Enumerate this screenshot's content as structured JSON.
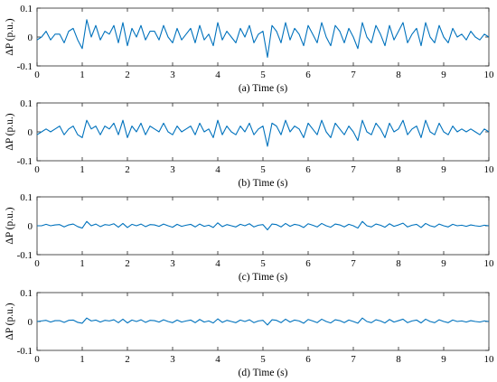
{
  "figure": {
    "colors": {
      "series": "#0072BD",
      "axis": "#262626"
    }
  },
  "chart_data": [
    {
      "id": "a",
      "type": "line",
      "xlabel": "(a) Time (s)",
      "ylabel": "ΔP (p.u.)",
      "xlim": [
        0,
        10
      ],
      "ylim": [
        -0.1,
        0.1
      ],
      "xticks": [
        0,
        1,
        2,
        3,
        4,
        5,
        6,
        7,
        8,
        9,
        10
      ],
      "yticks": [
        -0.1,
        0,
        0.1
      ],
      "xtick_labels": [
        "0",
        "1",
        "2",
        "3",
        "4",
        "5",
        "6",
        "7",
        "8",
        "9",
        "10"
      ],
      "ytick_labels": [
        "-0.1",
        "0",
        "0.1"
      ],
      "series": [
        {
          "x": [
            0,
            0.1,
            0.2,
            0.3,
            0.4,
            0.5,
            0.6,
            0.7,
            0.8,
            0.9,
            1.0,
            1.1,
            1.2,
            1.3,
            1.4,
            1.5,
            1.6,
            1.7,
            1.8,
            1.9,
            2.0,
            2.1,
            2.2,
            2.3,
            2.4,
            2.5,
            2.6,
            2.7,
            2.8,
            2.9,
            3.0,
            3.1,
            3.2,
            3.3,
            3.4,
            3.5,
            3.6,
            3.7,
            3.8,
            3.9,
            4.0,
            4.1,
            4.2,
            4.3,
            4.4,
            4.5,
            4.6,
            4.7,
            4.8,
            4.9,
            5.0,
            5.1,
            5.2,
            5.3,
            5.4,
            5.5,
            5.6,
            5.7,
            5.8,
            5.9,
            6.0,
            6.1,
            6.2,
            6.3,
            6.4,
            6.5,
            6.6,
            6.7,
            6.8,
            6.9,
            7.0,
            7.1,
            7.2,
            7.3,
            7.4,
            7.5,
            7.6,
            7.7,
            7.8,
            7.9,
            8.0,
            8.1,
            8.2,
            8.3,
            8.4,
            8.5,
            8.6,
            8.7,
            8.8,
            8.9,
            9.0,
            9.1,
            9.2,
            9.3,
            9.4,
            9.5,
            9.6,
            9.7,
            9.8,
            9.9,
            10.0
          ],
          "y": [
            -0.01,
            0.0,
            0.02,
            -0.01,
            0.01,
            0.01,
            -0.02,
            0.02,
            0.03,
            -0.01,
            -0.04,
            0.06,
            0.0,
            0.04,
            -0.01,
            0.02,
            0.01,
            0.04,
            -0.02,
            0.05,
            -0.03,
            0.03,
            0.0,
            0.04,
            -0.01,
            0.02,
            0.02,
            -0.01,
            0.04,
            0.0,
            -0.02,
            0.03,
            -0.01,
            0.01,
            0.03,
            -0.02,
            0.04,
            -0.01,
            0.01,
            -0.03,
            0.05,
            -0.01,
            0.02,
            0.0,
            -0.02,
            0.03,
            0.0,
            0.04,
            -0.02,
            0.01,
            0.02,
            -0.07,
            0.04,
            0.02,
            -0.02,
            0.05,
            -0.01,
            0.03,
            0.01,
            -0.03,
            0.04,
            0.01,
            -0.02,
            0.05,
            0.0,
            -0.03,
            0.04,
            0.02,
            -0.02,
            0.03,
            0.0,
            -0.04,
            0.05,
            0.0,
            -0.02,
            0.04,
            0.01,
            -0.03,
            0.04,
            -0.01,
            0.02,
            0.05,
            -0.02,
            0.01,
            0.03,
            -0.03,
            0.05,
            0.0,
            -0.02,
            0.04,
            0.0,
            -0.02,
            0.03,
            0.0,
            0.01,
            -0.01,
            0.02,
            0.0,
            -0.01,
            0.01,
            0.0
          ]
        }
      ]
    },
    {
      "id": "b",
      "type": "line",
      "xlabel": "(b) Time (s)",
      "ylabel": "ΔP (p.u.)",
      "xlim": [
        0,
        10
      ],
      "ylim": [
        -0.1,
        0.1
      ],
      "xticks": [
        0,
        1,
        2,
        3,
        4,
        5,
        6,
        7,
        8,
        9,
        10
      ],
      "yticks": [
        -0.1,
        0,
        0.1
      ],
      "xtick_labels": [
        "0",
        "1",
        "2",
        "3",
        "4",
        "5",
        "6",
        "7",
        "8",
        "9",
        "10"
      ],
      "ytick_labels": [
        "-0.1",
        "0",
        "0.1"
      ],
      "series": [
        {
          "x": [
            0,
            0.1,
            0.2,
            0.3,
            0.4,
            0.5,
            0.6,
            0.7,
            0.8,
            0.9,
            1.0,
            1.1,
            1.2,
            1.3,
            1.4,
            1.5,
            1.6,
            1.7,
            1.8,
            1.9,
            2.0,
            2.1,
            2.2,
            2.3,
            2.4,
            2.5,
            2.6,
            2.7,
            2.8,
            2.9,
            3.0,
            3.1,
            3.2,
            3.3,
            3.4,
            3.5,
            3.6,
            3.7,
            3.8,
            3.9,
            4.0,
            4.1,
            4.2,
            4.3,
            4.4,
            4.5,
            4.6,
            4.7,
            4.8,
            4.9,
            5.0,
            5.1,
            5.2,
            5.3,
            5.4,
            5.5,
            5.6,
            5.7,
            5.8,
            5.9,
            6.0,
            6.1,
            6.2,
            6.3,
            6.4,
            6.5,
            6.6,
            6.7,
            6.8,
            6.9,
            7.0,
            7.1,
            7.2,
            7.3,
            7.4,
            7.5,
            7.6,
            7.7,
            7.8,
            7.9,
            8.0,
            8.1,
            8.2,
            8.3,
            8.4,
            8.5,
            8.6,
            8.7,
            8.8,
            8.9,
            9.0,
            9.1,
            9.2,
            9.3,
            9.4,
            9.5,
            9.6,
            9.7,
            9.8,
            9.9,
            10.0
          ],
          "y": [
            -0.01,
            0.0,
            0.01,
            0.0,
            0.01,
            0.02,
            -0.01,
            0.01,
            0.02,
            -0.01,
            -0.02,
            0.04,
            0.01,
            0.02,
            -0.01,
            0.02,
            0.01,
            0.03,
            -0.01,
            0.04,
            -0.02,
            0.02,
            0.0,
            0.03,
            -0.01,
            0.02,
            0.01,
            0.0,
            0.03,
            0.0,
            -0.01,
            0.02,
            0.0,
            0.01,
            0.02,
            -0.01,
            0.03,
            0.0,
            0.01,
            -0.02,
            0.04,
            -0.01,
            0.02,
            0.0,
            -0.01,
            0.02,
            0.0,
            0.03,
            -0.01,
            0.01,
            0.02,
            -0.05,
            0.03,
            0.02,
            -0.01,
            0.04,
            0.0,
            0.02,
            0.01,
            -0.02,
            0.03,
            0.01,
            -0.01,
            0.04,
            0.0,
            -0.02,
            0.03,
            0.01,
            -0.01,
            0.02,
            0.0,
            -0.03,
            0.04,
            0.0,
            -0.01,
            0.03,
            0.01,
            -0.02,
            0.03,
            0.0,
            0.01,
            0.04,
            -0.01,
            0.01,
            0.02,
            -0.02,
            0.04,
            0.0,
            -0.01,
            0.03,
            0.0,
            -0.01,
            0.02,
            0.0,
            0.01,
            0.0,
            0.01,
            0.0,
            -0.01,
            0.01,
            0.0
          ]
        }
      ]
    },
    {
      "id": "c",
      "type": "line",
      "xlabel": "(c) Time (s)",
      "ylabel": "ΔP (p.u.)",
      "xlim": [
        0,
        10
      ],
      "ylim": [
        -0.1,
        0.1
      ],
      "xticks": [
        0,
        1,
        2,
        3,
        4,
        5,
        6,
        7,
        8,
        9,
        10
      ],
      "yticks": [
        -0.1,
        0,
        0.1
      ],
      "xtick_labels": [
        "0",
        "1",
        "2",
        "3",
        "4",
        "5",
        "6",
        "7",
        "8",
        "9",
        "10"
      ],
      "ytick_labels": [
        "-0.1",
        "0",
        "0.1"
      ],
      "series": [
        {
          "x": [
            0,
            0.1,
            0.2,
            0.3,
            0.4,
            0.5,
            0.6,
            0.7,
            0.8,
            0.9,
            1.0,
            1.1,
            1.2,
            1.3,
            1.4,
            1.5,
            1.6,
            1.7,
            1.8,
            1.9,
            2.0,
            2.1,
            2.2,
            2.3,
            2.4,
            2.5,
            2.6,
            2.7,
            2.8,
            2.9,
            3.0,
            3.1,
            3.2,
            3.3,
            3.4,
            3.5,
            3.6,
            3.7,
            3.8,
            3.9,
            4.0,
            4.1,
            4.2,
            4.3,
            4.4,
            4.5,
            4.6,
            4.7,
            4.8,
            4.9,
            5.0,
            5.1,
            5.2,
            5.3,
            5.4,
            5.5,
            5.6,
            5.7,
            5.8,
            5.9,
            6.0,
            6.1,
            6.2,
            6.3,
            6.4,
            6.5,
            6.6,
            6.7,
            6.8,
            6.9,
            7.0,
            7.1,
            7.2,
            7.3,
            7.4,
            7.5,
            7.6,
            7.7,
            7.8,
            7.9,
            8.0,
            8.1,
            8.2,
            8.3,
            8.4,
            8.5,
            8.6,
            8.7,
            8.8,
            8.9,
            9.0,
            9.1,
            9.2,
            9.3,
            9.4,
            9.5,
            9.6,
            9.7,
            9.8,
            9.9,
            10.0
          ],
          "y": [
            0.0,
            0.0,
            0.005,
            0.0,
            0.003,
            0.004,
            -0.004,
            0.003,
            0.006,
            -0.003,
            -0.008,
            0.015,
            0.0,
            0.006,
            -0.003,
            0.004,
            0.002,
            0.007,
            -0.005,
            0.008,
            -0.006,
            0.005,
            0.0,
            0.006,
            -0.003,
            0.004,
            0.003,
            -0.002,
            0.006,
            0.0,
            -0.005,
            0.005,
            -0.002,
            0.002,
            0.005,
            -0.004,
            0.006,
            -0.002,
            0.002,
            -0.006,
            0.01,
            -0.003,
            0.004,
            0.0,
            -0.004,
            0.005,
            0.0,
            0.007,
            -0.004,
            0.002,
            0.004,
            -0.014,
            0.006,
            0.004,
            -0.004,
            0.008,
            -0.002,
            0.005,
            0.002,
            -0.006,
            0.007,
            0.002,
            -0.004,
            0.008,
            0.0,
            -0.005,
            0.006,
            0.003,
            -0.004,
            0.005,
            0.0,
            -0.008,
            0.015,
            0.0,
            -0.004,
            0.006,
            0.002,
            -0.005,
            0.007,
            -0.002,
            0.003,
            0.009,
            -0.004,
            0.002,
            0.005,
            -0.006,
            0.008,
            0.0,
            -0.004,
            0.006,
            0.0,
            -0.004,
            0.005,
            0.0,
            0.002,
            -0.002,
            0.003,
            0.0,
            -0.002,
            0.002,
            0.0
          ]
        }
      ]
    },
    {
      "id": "d",
      "type": "line",
      "xlabel": "(d) Time (s)",
      "ylabel": "ΔP (p.u.)",
      "xlim": [
        0,
        10
      ],
      "ylim": [
        -0.1,
        0.1
      ],
      "xticks": [
        0,
        1,
        2,
        3,
        4,
        5,
        6,
        7,
        8,
        9,
        10
      ],
      "yticks": [
        -0.1,
        0,
        0.1
      ],
      "xtick_labels": [
        "0",
        "1",
        "2",
        "3",
        "4",
        "5",
        "6",
        "7",
        "8",
        "9",
        "10"
      ],
      "ytick_labels": [
        "-0.1",
        "0",
        "0.1"
      ],
      "series": [
        {
          "x": [
            0,
            0.1,
            0.2,
            0.3,
            0.4,
            0.5,
            0.6,
            0.7,
            0.8,
            0.9,
            1.0,
            1.1,
            1.2,
            1.3,
            1.4,
            1.5,
            1.6,
            1.7,
            1.8,
            1.9,
            2.0,
            2.1,
            2.2,
            2.3,
            2.4,
            2.5,
            2.6,
            2.7,
            2.8,
            2.9,
            3.0,
            3.1,
            3.2,
            3.3,
            3.4,
            3.5,
            3.6,
            3.7,
            3.8,
            3.9,
            4.0,
            4.1,
            4.2,
            4.3,
            4.4,
            4.5,
            4.6,
            4.7,
            4.8,
            4.9,
            5.0,
            5.1,
            5.2,
            5.3,
            5.4,
            5.5,
            5.6,
            5.7,
            5.8,
            5.9,
            6.0,
            6.1,
            6.2,
            6.3,
            6.4,
            6.5,
            6.6,
            6.7,
            6.8,
            6.9,
            7.0,
            7.1,
            7.2,
            7.3,
            7.4,
            7.5,
            7.6,
            7.7,
            7.8,
            7.9,
            8.0,
            8.1,
            8.2,
            8.3,
            8.4,
            8.5,
            8.6,
            8.7,
            8.8,
            8.9,
            9.0,
            9.1,
            9.2,
            9.3,
            9.4,
            9.5,
            9.6,
            9.7,
            9.8,
            9.9,
            10.0
          ],
          "y": [
            0.0,
            0.002,
            0.004,
            -0.002,
            0.003,
            0.003,
            -0.003,
            0.004,
            0.005,
            -0.003,
            -0.006,
            0.012,
            0.002,
            0.005,
            -0.002,
            0.004,
            0.002,
            0.006,
            -0.004,
            0.008,
            -0.005,
            0.005,
            0.0,
            0.006,
            -0.003,
            0.004,
            0.003,
            -0.002,
            0.006,
            0.0,
            -0.004,
            0.005,
            -0.002,
            0.002,
            0.005,
            -0.004,
            0.007,
            -0.002,
            0.002,
            -0.005,
            0.009,
            -0.003,
            0.004,
            0.0,
            -0.004,
            0.005,
            0.0,
            0.006,
            -0.004,
            0.002,
            0.004,
            -0.012,
            0.006,
            0.004,
            -0.004,
            0.008,
            -0.002,
            0.005,
            0.002,
            -0.006,
            0.007,
            0.002,
            -0.004,
            0.008,
            0.0,
            -0.005,
            0.006,
            0.003,
            -0.004,
            0.005,
            0.0,
            -0.006,
            0.012,
            0.0,
            -0.004,
            0.006,
            0.002,
            -0.005,
            0.007,
            -0.002,
            0.003,
            0.008,
            -0.004,
            0.002,
            0.005,
            -0.005,
            0.008,
            0.0,
            -0.004,
            0.006,
            0.0,
            -0.004,
            0.005,
            0.0,
            0.002,
            -0.002,
            0.003,
            0.0,
            -0.002,
            0.002,
            0.0
          ]
        }
      ]
    }
  ]
}
